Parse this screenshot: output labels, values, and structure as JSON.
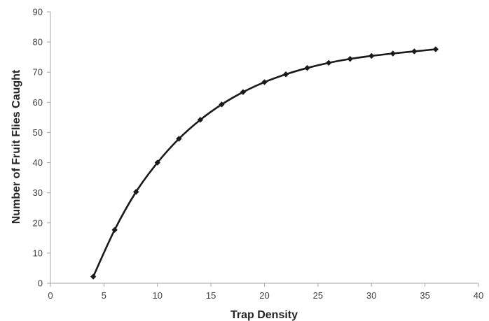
{
  "chart_data": {
    "type": "line",
    "xlabel": "Trap Density",
    "ylabel": "Number of Fruit Flies Caught",
    "xlim": [
      0,
      40
    ],
    "ylim": [
      0,
      90
    ],
    "xticks": [
      0,
      5,
      10,
      15,
      20,
      25,
      30,
      35,
      40
    ],
    "yticks": [
      0,
      10,
      20,
      30,
      40,
      50,
      60,
      70,
      80,
      90
    ],
    "grid": false,
    "legend": "none",
    "series": [
      {
        "color": "#1a1a1a",
        "marker": "diamond",
        "x": [
          4,
          6,
          8,
          10,
          12,
          14,
          16,
          18,
          20,
          22,
          24,
          26,
          28,
          30,
          32,
          34,
          36
        ],
        "y": [
          2.2,
          17.7,
          30.3,
          40.0,
          47.9,
          54.2,
          59.3,
          63.4,
          66.7,
          69.3,
          71.4,
          73.1,
          74.4,
          75.4,
          76.2,
          76.9,
          77.6
        ]
      }
    ]
  }
}
